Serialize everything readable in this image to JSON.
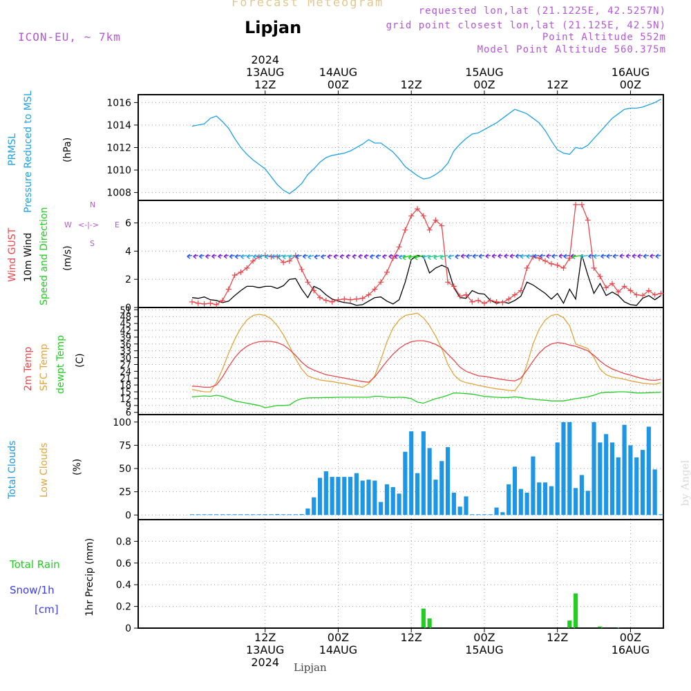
{
  "header": {
    "title": "Forecast Meteogram",
    "station": "Lipjan",
    "model": "ICON-EU, ~ 7km",
    "requested": "requested lon,lat (21.1225E, 42.5257N)",
    "gridpoint": "grid point closest lon,lat (21.125E, 42.5N)",
    "altitude": "Point Altitude 552m",
    "model_altitude": "Model Point Altitude 560.375m",
    "credit": "by Angel",
    "footer_station": "Lipjan"
  },
  "time_axis": {
    "top_ticks": [
      {
        "hour": 12,
        "lines": [
          "2024",
          "13AUG",
          "12Z"
        ]
      },
      {
        "hour": 24,
        "lines": [
          "14AUG",
          "00Z"
        ]
      },
      {
        "hour": 36,
        "lines": [
          "12Z"
        ]
      },
      {
        "hour": 48,
        "lines": [
          "15AUG",
          "00Z"
        ]
      },
      {
        "hour": 60,
        "lines": [
          "12Z"
        ]
      },
      {
        "hour": 72,
        "lines": [
          "16AUG",
          "00Z"
        ]
      }
    ],
    "bottom_ticks": [
      {
        "hour": 12,
        "lines": [
          "12Z",
          "13AUG",
          "2024"
        ]
      },
      {
        "hour": 24,
        "lines": [
          "00Z",
          "14AUG"
        ]
      },
      {
        "hour": 36,
        "lines": [
          "12Z"
        ]
      },
      {
        "hour": 48,
        "lines": [
          "00Z",
          "15AUG"
        ]
      },
      {
        "hour": 60,
        "lines": [
          "12Z"
        ]
      },
      {
        "hour": 72,
        "lines": [
          "00Z",
          "16AUG"
        ]
      }
    ]
  },
  "panel_labels": {
    "pressure": {
      "name1": "PRMSL",
      "name2": "Pressure Reduced to MSL",
      "unit": "(hPa)"
    },
    "wind": {
      "gust": "Wind GUST",
      "wind": "10m Wind",
      "dir": "Speed and Direction",
      "unit": "(m/s)",
      "compass_n": "N",
      "compass_s": "S",
      "compass_w": "W",
      "compass_e": "E",
      "compass_arrow": "<-|->"
    },
    "temp": {
      "t2m": "2m Temp",
      "sfc": "SFC Temp",
      "dew": "dewpt Temp",
      "unit": "(C)"
    },
    "clouds": {
      "total": "Total Clouds",
      "low": "Low Clouds",
      "unit": "(%)"
    },
    "precip": {
      "rain": "Total  Rain",
      "snow": "Snow/1h",
      "snow_unit": "[cm]",
      "axis": "1hr Precip (mm)"
    }
  },
  "colors": {
    "pressure": "#1ea0e6",
    "gust": "#e8464a",
    "wind": "#000000",
    "t2m": "#e8464a",
    "sfc": "#e0a43a",
    "dew": "#22cc22",
    "clouds": "#1e96e6",
    "rain": "#22cc22",
    "label_purple": "#b455d6",
    "snow_label": "#3a3aee"
  },
  "chart_data": [
    {
      "type": "line",
      "name": "pressure",
      "x_hours": [
        0,
        1,
        2,
        3,
        4,
        5,
        6,
        7,
        8,
        9,
        10,
        11,
        12,
        13,
        14,
        15,
        16,
        17,
        18,
        19,
        20,
        21,
        22,
        23,
        24,
        25,
        26,
        27,
        28,
        29,
        30,
        31,
        32,
        33,
        34,
        35,
        36,
        37,
        38,
        39,
        40,
        41,
        42,
        43,
        44,
        45,
        46,
        47,
        48,
        49,
        50,
        51,
        52,
        53,
        54,
        55,
        56,
        57,
        58,
        59,
        60,
        61,
        62,
        63,
        64,
        65,
        66,
        67,
        68,
        69,
        70,
        71,
        72,
        73,
        74,
        75,
        76,
        77
      ],
      "values": [
        1013.9,
        1014.0,
        1014.1,
        1014.6,
        1014.8,
        1014.3,
        1013.7,
        1012.8,
        1012.0,
        1011.4,
        1010.9,
        1010.5,
        1010.1,
        1009.4,
        1008.7,
        1008.2,
        1007.9,
        1008.3,
        1008.8,
        1009.6,
        1010.1,
        1010.7,
        1011.1,
        1011.3,
        1011.4,
        1011.5,
        1011.7,
        1012.0,
        1012.3,
        1012.7,
        1012.4,
        1012.4,
        1012.0,
        1011.6,
        1011.0,
        1010.3,
        1009.9,
        1009.5,
        1009.2,
        1009.3,
        1009.6,
        1010.0,
        1010.6,
        1011.7,
        1012.3,
        1012.8,
        1013.2,
        1013.3,
        1013.6,
        1013.9,
        1014.2,
        1014.6,
        1015.0,
        1015.4,
        1015.2,
        1015.0,
        1014.6,
        1014.2,
        1013.5,
        1012.6,
        1011.8,
        1011.5,
        1011.4,
        1012.0,
        1011.9,
        1012.2,
        1012.8,
        1013.4,
        1014.0,
        1014.6,
        1015.0,
        1015.4,
        1015.5,
        1015.5,
        1015.6,
        1015.8,
        1016.0,
        1016.3
      ]
    },
    {
      "type": "line",
      "name": "wind",
      "x_hours": [
        0,
        1,
        2,
        3,
        4,
        5,
        6,
        7,
        8,
        9,
        10,
        11,
        12,
        13,
        14,
        15,
        16,
        17,
        18,
        19,
        20,
        21,
        22,
        23,
        24,
        25,
        26,
        27,
        28,
        29,
        30,
        31,
        32,
        33,
        34,
        35,
        36,
        37,
        38,
        39,
        40,
        41,
        42,
        43,
        44,
        45,
        46,
        47,
        48,
        49,
        50,
        51,
        52,
        53,
        54,
        55,
        56,
        57,
        58,
        59,
        60,
        61,
        62,
        63,
        64,
        65,
        66,
        67,
        68,
        69,
        70,
        71,
        72,
        73,
        74,
        75,
        76,
        77
      ],
      "wind": [
        0.7,
        0.65,
        0.75,
        0.55,
        0.5,
        0.35,
        0.45,
        0.85,
        1.2,
        1.5,
        1.5,
        1.4,
        1.5,
        1.5,
        1.35,
        1.55,
        2.0,
        2.05,
        1.3,
        0.7,
        1.5,
        1.3,
        0.9,
        0.6,
        0.45,
        0.35,
        0.3,
        0.15,
        0.2,
        0.45,
        0.7,
        0.75,
        0.45,
        0.25,
        0.55,
        1.8,
        3.4,
        3.7,
        3.6,
        2.45,
        2.8,
        3.0,
        2.8,
        1.4,
        0.7,
        0.65,
        1.2,
        1.0,
        0.95,
        0.5,
        0.3,
        0.4,
        0.3,
        0.5,
        0.8,
        1.8,
        1.6,
        1.3,
        1.0,
        0.6,
        1.0,
        0.3,
        1.3,
        0.6,
        3.75,
        2.3,
        1.0,
        1.7,
        0.85,
        1.1,
        0.85,
        0.4,
        0.2,
        0.15,
        0.65,
        0.85,
        0.55,
        0.85
      ],
      "gust": [
        0.4,
        0.3,
        0.25,
        0.3,
        0.2,
        0.5,
        1.3,
        2.3,
        2.5,
        2.8,
        3.3,
        3.6,
        3.7,
        3.6,
        3.6,
        3.2,
        3.3,
        3.7,
        2.7,
        1.8,
        1.2,
        0.7,
        0.5,
        0.4,
        0.55,
        0.6,
        0.55,
        0.6,
        0.65,
        0.9,
        1.3,
        1.8,
        2.5,
        3.5,
        4.3,
        5.5,
        6.5,
        7.0,
        6.5,
        5.5,
        6.2,
        5.8,
        1.8,
        1.5,
        0.8,
        0.9,
        0.4,
        0.5,
        0.3,
        0.5,
        0.4,
        0.35,
        0.6,
        0.9,
        1.2,
        2.8,
        3.6,
        3.5,
        3.3,
        3.1,
        3.0,
        2.8,
        3.5,
        7.3,
        7.3,
        6.2,
        2.8,
        2.2,
        1.4,
        1.7,
        1.1,
        1.5,
        1.2,
        0.9,
        0.85,
        1.2,
        0.9,
        1.0
      ]
    },
    {
      "type": "line",
      "name": "temperature",
      "x_hours": [
        0,
        1,
        2,
        3,
        4,
        5,
        6,
        7,
        8,
        9,
        10,
        11,
        12,
        13,
        14,
        15,
        16,
        17,
        18,
        19,
        20,
        21,
        22,
        23,
        24,
        25,
        26,
        27,
        28,
        29,
        30,
        31,
        32,
        33,
        34,
        35,
        36,
        37,
        38,
        39,
        40,
        41,
        42,
        43,
        44,
        45,
        46,
        47,
        48,
        49,
        50,
        51,
        52,
        53,
        54,
        55,
        56,
        57,
        58,
        59,
        60,
        61,
        62,
        63,
        64,
        65,
        66,
        67,
        68,
        69,
        70,
        71,
        72,
        73,
        74,
        75,
        76,
        77
      ],
      "t2m": [
        17.5,
        17.3,
        17.0,
        17.0,
        18.0,
        21.5,
        26.0,
        30.0,
        33.0,
        35.0,
        36.3,
        37.0,
        37.2,
        37.1,
        36.6,
        35.5,
        33.5,
        31.0,
        28.0,
        25.8,
        24.5,
        23.5,
        22.5,
        22.0,
        21.5,
        21.0,
        20.5,
        20.0,
        19.5,
        19.2,
        21.5,
        25.0,
        28.5,
        31.5,
        34.0,
        35.8,
        37.0,
        37.4,
        37.4,
        36.8,
        35.8,
        34.3,
        31.5,
        28.8,
        25.8,
        24.0,
        23.0,
        22.0,
        21.8,
        21.3,
        20.8,
        20.4,
        20.0,
        19.8,
        21.0,
        24.5,
        28.5,
        32.0,
        34.5,
        36.0,
        36.6,
        36.3,
        35.5,
        35.0,
        34.0,
        33.0,
        31.0,
        28.5,
        26.5,
        25.0,
        24.0,
        23.0,
        22.3,
        21.5,
        20.8,
        20.2,
        20.0,
        20.5
      ],
      "sfc": [
        16.0,
        15.5,
        15.0,
        15.0,
        19.0,
        25.0,
        32.0,
        38.0,
        43.0,
        46.5,
        48.5,
        49.0,
        48.5,
        47.0,
        44.0,
        40.0,
        35.0,
        29.5,
        25.0,
        22.0,
        21.0,
        20.2,
        19.8,
        19.5,
        19.0,
        18.6,
        18.0,
        17.5,
        17.0,
        18.5,
        22.0,
        29.0,
        37.0,
        43.0,
        46.5,
        48.5,
        49.0,
        49.5,
        47.5,
        44.0,
        39.5,
        34.0,
        27.0,
        22.5,
        20.0,
        19.0,
        18.5,
        17.8,
        17.3,
        16.8,
        16.3,
        16.0,
        15.6,
        15.5,
        19.0,
        27.0,
        36.0,
        42.5,
        46.5,
        48.5,
        49.0,
        47.5,
        44.0,
        36.0,
        35.0,
        34.0,
        30.0,
        25.0,
        22.5,
        21.5,
        21.0,
        20.5,
        19.8,
        19.3,
        18.8,
        18.5,
        18.3,
        19.0
      ],
      "dew": [
        12.8,
        13.0,
        13.2,
        13.0,
        13.5,
        13.0,
        12.0,
        11.0,
        10.5,
        10.0,
        9.5,
        9.0,
        8.0,
        8.5,
        9.0,
        9.0,
        9.2,
        11.0,
        12.0,
        12.3,
        12.4,
        12.4,
        12.5,
        12.5,
        12.6,
        12.6,
        12.6,
        12.6,
        12.6,
        12.6,
        13.0,
        13.0,
        12.6,
        12.5,
        12.6,
        12.5,
        12.0,
        10.5,
        10.0,
        11.0,
        12.0,
        12.6,
        13.5,
        14.5,
        14.4,
        14.2,
        14.0,
        13.5,
        13.0,
        12.8,
        12.6,
        12.5,
        12.5,
        12.8,
        12.5,
        12.0,
        11.8,
        11.5,
        11.3,
        11.0,
        11.0,
        11.0,
        11.5,
        12.0,
        12.4,
        12.8,
        13.5,
        14.5,
        14.8,
        14.8,
        15.0,
        15.0,
        14.8,
        14.5,
        14.5,
        14.6,
        14.7,
        14.8
      ]
    },
    {
      "type": "bar",
      "name": "total_clouds",
      "x_hours": [
        0,
        1,
        2,
        3,
        4,
        5,
        6,
        7,
        8,
        9,
        10,
        11,
        12,
        13,
        14,
        15,
        16,
        17,
        18,
        19,
        20,
        21,
        22,
        23,
        24,
        25,
        26,
        27,
        28,
        29,
        30,
        31,
        32,
        33,
        34,
        35,
        36,
        37,
        38,
        39,
        40,
        41,
        42,
        43,
        44,
        45,
        46,
        47,
        48,
        49,
        50,
        51,
        52,
        53,
        54,
        55,
        56,
        57,
        58,
        59,
        60,
        61,
        62,
        63,
        64,
        65,
        66,
        67,
        68,
        69,
        70,
        71,
        72,
        73,
        74,
        75,
        76,
        77
      ],
      "values": [
        0,
        0,
        0,
        0,
        0,
        0,
        0,
        0,
        0,
        0,
        0,
        0,
        0,
        0,
        1,
        0,
        0,
        0,
        1,
        7,
        19,
        40,
        47,
        41,
        41,
        41,
        41,
        45,
        37,
        38,
        37,
        14,
        33,
        30,
        23,
        68,
        90,
        45,
        90,
        72,
        38,
        58,
        73,
        24,
        9,
        20,
        0,
        0,
        0,
        0,
        8,
        3,
        33,
        52,
        28,
        24,
        63,
        35,
        35,
        31,
        78,
        100,
        100,
        29,
        43,
        26,
        100,
        78,
        87,
        78,
        62,
        97,
        75,
        62,
        70,
        95,
        49,
        0
      ]
    },
    {
      "type": "bar",
      "name": "precip",
      "x_hours": [
        0,
        1,
        2,
        3,
        4,
        5,
        6,
        7,
        8,
        9,
        10,
        11,
        12,
        13,
        14,
        15,
        16,
        17,
        18,
        19,
        20,
        21,
        22,
        23,
        24,
        25,
        26,
        27,
        28,
        29,
        30,
        31,
        32,
        33,
        34,
        35,
        36,
        37,
        38,
        39,
        40,
        41,
        42,
        43,
        44,
        45,
        46,
        47,
        48,
        49,
        50,
        51,
        52,
        53,
        54,
        55,
        56,
        57,
        58,
        59,
        60,
        61,
        62,
        63,
        64,
        65,
        66,
        67,
        68,
        69,
        70,
        71,
        72,
        73,
        74,
        75,
        76,
        77
      ],
      "values": [
        0,
        0,
        0,
        0,
        0,
        0,
        0,
        0,
        0,
        0,
        0,
        0,
        0,
        0,
        0,
        0,
        0,
        0,
        0,
        0,
        0,
        0,
        0,
        0,
        0,
        0,
        0,
        0,
        0,
        0,
        0,
        0,
        0,
        0,
        0,
        0,
        0,
        0,
        0.18,
        0.09,
        0,
        0,
        0,
        0,
        0,
        0,
        0,
        0,
        0,
        0,
        0,
        0,
        0,
        0,
        0,
        0,
        0,
        0,
        0,
        0,
        0,
        0,
        0.07,
        0.32,
        0,
        0,
        0,
        0.015,
        0,
        0,
        0.005,
        0,
        0,
        0,
        0,
        0,
        0,
        0
      ]
    }
  ],
  "axes": {
    "pressure": {
      "ylim": [
        1007.3,
        1016.7
      ],
      "ticks": [
        1008,
        1010,
        1012,
        1014,
        1016
      ]
    },
    "wind": {
      "ylim": [
        0,
        7.6
      ],
      "ticks": [
        0,
        2,
        4,
        6
      ]
    },
    "temp": {
      "ylim": [
        5,
        52
      ],
      "ticks": [
        6,
        9,
        12,
        15,
        18,
        21,
        24,
        27,
        30,
        33,
        36,
        39,
        42,
        45,
        48,
        51
      ]
    },
    "clouds": {
      "ylim": [
        -5,
        108
      ],
      "ticks": [
        0,
        25,
        50,
        75,
        100
      ]
    },
    "precip": {
      "ylim": [
        0,
        1.0
      ],
      "ticks": [
        "0",
        "0.2",
        "0.4",
        "0.6",
        "0.8"
      ]
    }
  }
}
